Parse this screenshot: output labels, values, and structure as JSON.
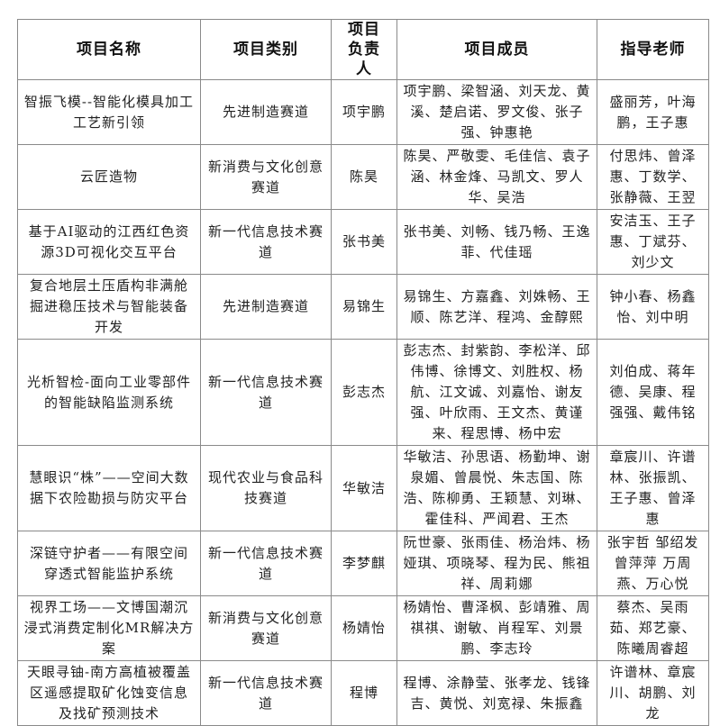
{
  "headers": [
    "项目名称",
    "项目类别",
    "项目负责人",
    "项目成员",
    "指导老师"
  ],
  "rows": [
    {
      "name": "智振飞模--智能化模具加工工艺新引领",
      "category": "先进制造赛道",
      "leader": "项宇鹏",
      "members": "项宇鹏、梁智涵、刘天龙、黄溪、楚启诺、罗文俊、张子强、钟惠艳",
      "advisors": "盛丽芳，叶海鹏，王子惠"
    },
    {
      "name": "云匠造物",
      "category": "新消费与文化创意赛道",
      "leader": "陈昊",
      "members": "陈昊、严敬雯、毛佳信、袁子涵、林金烽、马凯文、罗人华、吴浩",
      "advisors": "付思炜、曾泽惠、丁数学、张静薇、王翌"
    },
    {
      "name": "基于AI驱动的江西红色资源3D可视化交互平台",
      "category": "新一代信息技术赛道",
      "leader": "张书美",
      "members": "张书美、刘畅、钱乃畅、王逸菲、代佳瑶",
      "advisors": "安洁玉、王子惠、丁斌芬、刘少文"
    },
    {
      "name": "复合地层土压盾构非满舱掘进稳压技术与智能装备开发",
      "category": "先进制造赛道",
      "leader": "易锦生",
      "members": "易锦生、方嘉鑫、刘姝畅、王顺、陈艺洋、程鸿、金醇熙",
      "advisors": "钟小春、杨鑫怡、刘中明"
    },
    {
      "name": "光析智检-面向工业零部件的智能缺陷监测系统",
      "category": "新一代信息技术赛道",
      "leader": "彭志杰",
      "members": "彭志杰、封紫韵、李松洋、邱伟博、徐博文、刘胜权、杨航、江文诚、刘嘉怡、谢友强、叶欣雨、王文杰、黄谨来、程思博、杨中宏",
      "advisors": "刘伯成、蒋年德、吴康、程强强、戴伟铭"
    },
    {
      "name": "慧眼识“株”——空间大数据下农险勘损与防灾平台",
      "category": "现代农业与食品科技赛道",
      "leader": "华敏洁",
      "members": "华敏洁、孙思语、杨勤坤、谢泉媚、曾晨悦、朱志国、陈浩、陈柳勇、王颖慧、刘琳、霍佳科、严闻君、王杰",
      "advisors": "章宸川、许谱林、张振凯、王子惠、曾泽惠"
    },
    {
      "name": "深链守护者——有限空间穿透式智能监护系统",
      "category": "新一代信息技术赛道",
      "leader": "李梦麒",
      "members": "阮世豪、张雨佳、杨治炜、杨娅琪、项晓琴、程为民、熊祖祥、周莉娜",
      "advisors": "张宇哲 邹绍发 曾萍萍 万周燕、万心悦"
    },
    {
      "name": "视界工场——文博国潮沉浸式消费定制化MR解决方案",
      "category": "新消费与文化创意赛道",
      "leader": "杨婧怡",
      "members": "杨婧怡、曹泽枫、彭靖雅、周祺祺、谢敏、肖程军、刘景鹏、李志玲",
      "advisors": "蔡杰、吴雨茹、郑艺豪、陈曦周睿超"
    },
    {
      "name": "天眼寻铀-南方高植被覆盖区遥感提取矿化蚀变信息及找矿预测技术",
      "category": "新一代信息技术赛道",
      "leader": "程博",
      "members": "程博、涂静莹、张孝龙、钱锋吉、黄悦、刘宽禄、朱振鑫",
      "advisors": "许谱林、章宸川、胡鹏、刘龙"
    }
  ]
}
